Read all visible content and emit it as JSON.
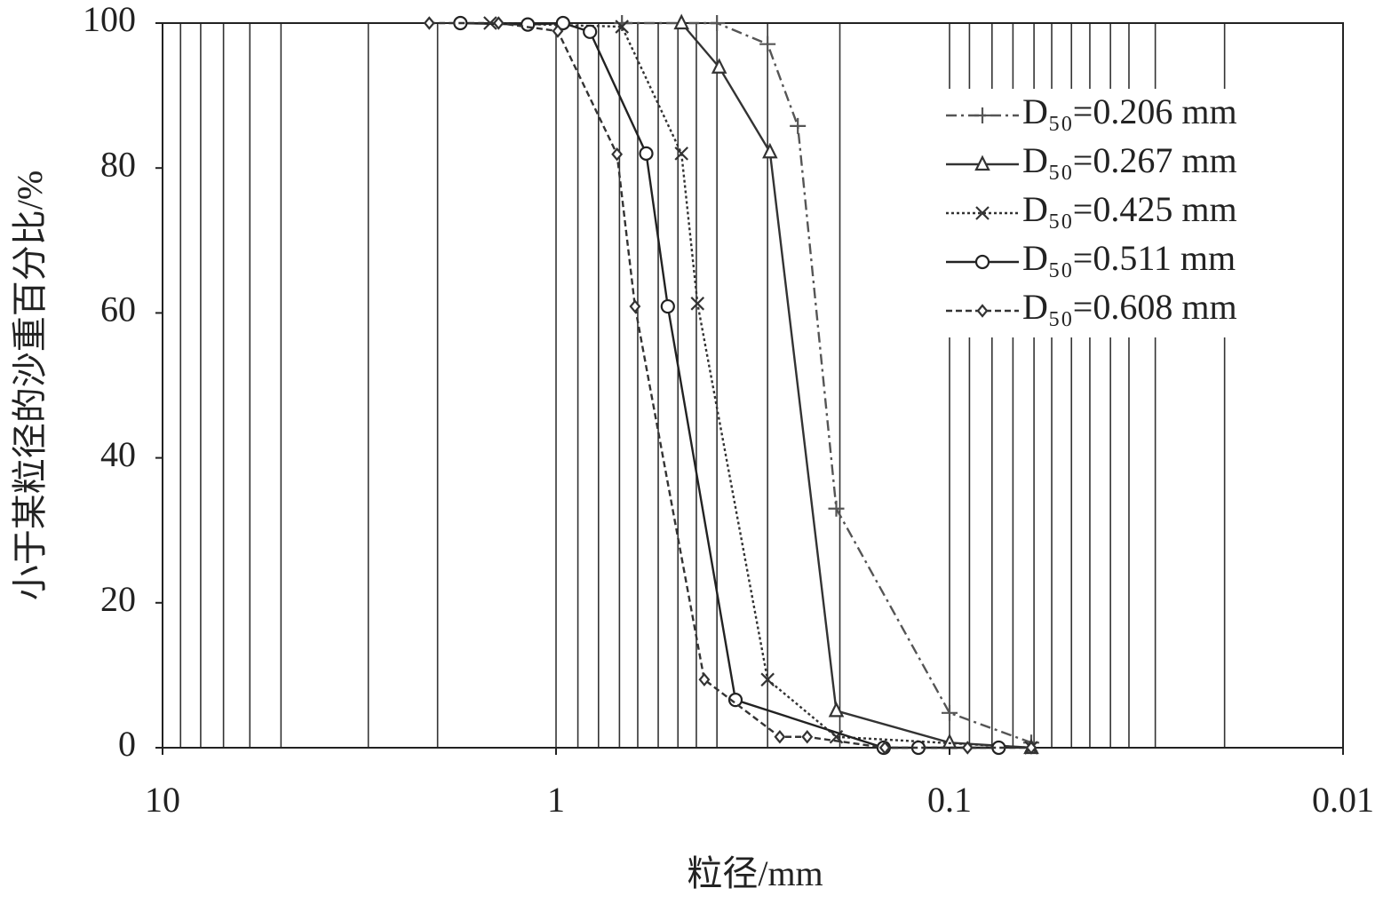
{
  "chart_data": {
    "type": "line",
    "x_label": "粒径/mm",
    "y_label": "小于某粒径的沙重百分比/%",
    "x_log": true,
    "xlim": [
      10,
      0.01
    ],
    "ylim": [
      0,
      100
    ],
    "xticks": [
      10,
      1,
      0.1,
      0.01
    ],
    "yticks": [
      0,
      20,
      40,
      60,
      80,
      100
    ],
    "xgrid": [
      9,
      8,
      7,
      6,
      5,
      3,
      2,
      1,
      0.88,
      0.78,
      0.69,
      0.62,
      0.55,
      0.49,
      0.44,
      0.39,
      0.29,
      0.19,
      0.1,
      0.089,
      0.078,
      0.069,
      0.061,
      0.055,
      0.049,
      0.044,
      0.039,
      0.035,
      0.03,
      0.02
    ],
    "legend": "top-right",
    "series": [
      {
        "name": "D₅₀=0.206 mm",
        "color": "#555",
        "dash": "12 5 3 5",
        "marker": "plus",
        "x": [
          0.68,
          0.39,
          0.29,
          0.243,
          0.194,
          0.1,
          0.062
        ],
        "values": [
          100,
          100,
          97.1,
          85.8,
          33,
          4.8,
          0.7
        ]
      },
      {
        "name": "D₅₀=0.267 mm",
        "color": "#333",
        "dash": "",
        "marker": "triangle",
        "x": [
          0.48,
          0.385,
          0.286,
          0.194,
          0.1,
          0.062
        ],
        "values": [
          100,
          93.9,
          82.2,
          5.1,
          0.7,
          0
        ]
      },
      {
        "name": "D₅₀=0.425 mm",
        "color": "#333",
        "dash": "3 3",
        "marker": "cross",
        "x": [
          1.47,
          0.68,
          0.48,
          0.437,
          0.29,
          0.194,
          0.062
        ],
        "values": [
          100,
          99.5,
          82,
          61.3,
          9.4,
          1.5,
          0
        ]
      },
      {
        "name": "D₅₀=0.511 mm",
        "color": "#222",
        "dash": "",
        "marker": "circle",
        "x": [
          1.75,
          1.18,
          0.96,
          0.82,
          0.59,
          0.52,
          0.35,
          0.147,
          0.12,
          0.075
        ],
        "values": [
          100,
          99.8,
          100,
          98.8,
          82,
          60.9,
          6.6,
          0,
          0,
          0
        ]
      },
      {
        "name": "D₅₀=0.608 mm",
        "color": "#333",
        "dash": "7 4",
        "marker": "diamond",
        "x": [
          2.1,
          1.4,
          0.99,
          0.7,
          0.63,
          0.42,
          0.27,
          0.23,
          0.146,
          0.09,
          0.062
        ],
        "values": [
          100,
          100,
          98.9,
          81.9,
          60.9,
          9.4,
          1.5,
          1.5,
          0,
          0,
          0
        ]
      }
    ]
  }
}
